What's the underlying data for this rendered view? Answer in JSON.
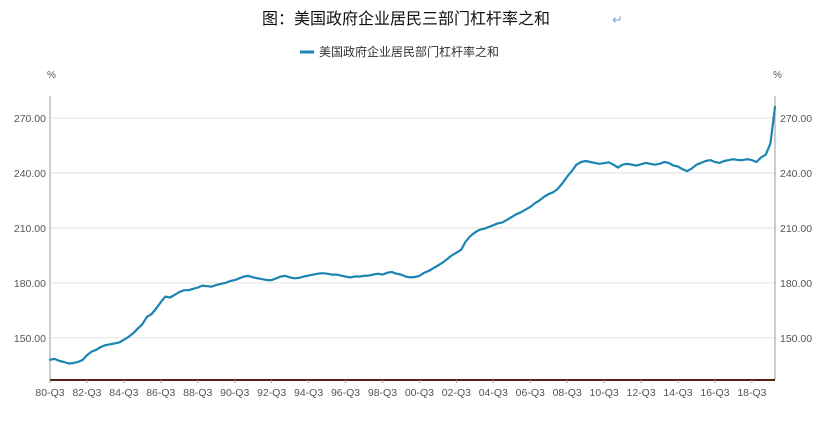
{
  "title": "图：美国政府企业居民三部门杠杆率之和",
  "return_mark": "↵",
  "chart_data": {
    "type": "line",
    "title": "图：美国政府企业居民三部门杠杆率之和",
    "y_unit_left": "%",
    "y_unit_right": "%",
    "ylim": [
      127,
      282
    ],
    "yticks": [
      "150.00",
      "180.00",
      "210.00",
      "240.00",
      "270.00"
    ],
    "x_tick_labels": [
      "80-Q3",
      "82-Q3",
      "84-Q3",
      "86-Q3",
      "88-Q3",
      "90-Q3",
      "92-Q3",
      "94-Q3",
      "96-Q3",
      "98-Q3",
      "00-Q3",
      "02-Q3",
      "04-Q3",
      "06-Q3",
      "08-Q3",
      "10-Q3",
      "12-Q3",
      "14-Q3",
      "16-Q3",
      "18-Q3"
    ],
    "x_start": "1980-Q3",
    "x_end": "2019-Q4",
    "grid": true,
    "legend_position": "top-center",
    "series": [
      {
        "name": "美国政府企业居民部门杠杆率之和",
        "color": "#1b84b3",
        "points": [
          [
            "1980-Q3",
            138.0
          ],
          [
            "1980-Q4",
            138.5
          ],
          [
            "1981-Q1",
            137.5
          ],
          [
            "1981-Q2",
            136.8
          ],
          [
            "1981-Q3",
            136.0
          ],
          [
            "1981-Q4",
            136.2
          ],
          [
            "1982-Q1",
            136.8
          ],
          [
            "1982-Q2",
            137.8
          ],
          [
            "1982-Q3",
            140.5
          ],
          [
            "1982-Q4",
            142.5
          ],
          [
            "1983-Q1",
            143.5
          ],
          [
            "1983-Q2",
            145.0
          ],
          [
            "1983-Q3",
            146.0
          ],
          [
            "1983-Q4",
            146.5
          ],
          [
            "1984-Q1",
            147.0
          ],
          [
            "1984-Q2",
            147.5
          ],
          [
            "1984-Q3",
            149.0
          ],
          [
            "1984-Q4",
            150.5
          ],
          [
            "1985-Q1",
            152.5
          ],
          [
            "1985-Q2",
            155.0
          ],
          [
            "1985-Q3",
            157.5
          ],
          [
            "1985-Q4",
            161.5
          ],
          [
            "1986-Q1",
            163.0
          ],
          [
            "1986-Q2",
            166.0
          ],
          [
            "1986-Q3",
            169.5
          ],
          [
            "1986-Q4",
            172.5
          ],
          [
            "1987-Q1",
            172.0
          ],
          [
            "1987-Q2",
            173.5
          ],
          [
            "1987-Q3",
            175.0
          ],
          [
            "1987-Q4",
            176.0
          ],
          [
            "1988-Q1",
            176.0
          ],
          [
            "1988-Q2",
            176.8
          ],
          [
            "1988-Q3",
            177.5
          ],
          [
            "1988-Q4",
            178.5
          ],
          [
            "1989-Q1",
            178.2
          ],
          [
            "1989-Q2",
            178.0
          ],
          [
            "1989-Q3",
            178.8
          ],
          [
            "1989-Q4",
            179.5
          ],
          [
            "1990-Q1",
            180.0
          ],
          [
            "1990-Q2",
            181.0
          ],
          [
            "1990-Q3",
            181.5
          ],
          [
            "1990-Q4",
            182.5
          ],
          [
            "1991-Q1",
            183.5
          ],
          [
            "1991-Q2",
            183.8
          ],
          [
            "1991-Q3",
            183.0
          ],
          [
            "1991-Q4",
            182.5
          ],
          [
            "1992-Q1",
            182.0
          ],
          [
            "1992-Q2",
            181.5
          ],
          [
            "1992-Q3",
            181.5
          ],
          [
            "1992-Q4",
            182.5
          ],
          [
            "1993-Q1",
            183.5
          ],
          [
            "1993-Q2",
            183.8
          ],
          [
            "1993-Q3",
            183.0
          ],
          [
            "1993-Q4",
            182.5
          ],
          [
            "1994-Q1",
            182.8
          ],
          [
            "1994-Q2",
            183.5
          ],
          [
            "1994-Q3",
            184.0
          ],
          [
            "1994-Q4",
            184.5
          ],
          [
            "1995-Q1",
            185.0
          ],
          [
            "1995-Q2",
            185.3
          ],
          [
            "1995-Q3",
            185.0
          ],
          [
            "1995-Q4",
            184.5
          ],
          [
            "1996-Q1",
            184.5
          ],
          [
            "1996-Q2",
            184.0
          ],
          [
            "1996-Q3",
            183.5
          ],
          [
            "1996-Q4",
            183.0
          ],
          [
            "1997-Q1",
            183.5
          ],
          [
            "1997-Q2",
            183.5
          ],
          [
            "1997-Q3",
            183.8
          ],
          [
            "1997-Q4",
            184.0
          ],
          [
            "1998-Q1",
            184.5
          ],
          [
            "1998-Q2",
            185.0
          ],
          [
            "1998-Q3",
            184.5
          ],
          [
            "1998-Q4",
            185.5
          ],
          [
            "1999-Q1",
            186.0
          ],
          [
            "1999-Q2",
            185.0
          ],
          [
            "1999-Q3",
            184.5
          ],
          [
            "1999-Q4",
            183.5
          ],
          [
            "2000-Q1",
            183.0
          ],
          [
            "2000-Q2",
            183.2
          ],
          [
            "2000-Q3",
            183.8
          ],
          [
            "2000-Q4",
            185.5
          ],
          [
            "2001-Q1",
            186.5
          ],
          [
            "2001-Q2",
            188.0
          ],
          [
            "2001-Q3",
            189.5
          ],
          [
            "2001-Q4",
            191.0
          ],
          [
            "2002-Q1",
            193.0
          ],
          [
            "2002-Q2",
            195.0
          ],
          [
            "2002-Q3",
            196.5
          ],
          [
            "2002-Q4",
            198.0
          ],
          [
            "2003-Q1",
            202.5
          ],
          [
            "2003-Q2",
            205.5
          ],
          [
            "2003-Q3",
            207.5
          ],
          [
            "2003-Q4",
            209.0
          ],
          [
            "2004-Q1",
            209.5
          ],
          [
            "2004-Q2",
            210.5
          ],
          [
            "2004-Q3",
            211.5
          ],
          [
            "2004-Q4",
            212.5
          ],
          [
            "2005-Q1",
            213.0
          ],
          [
            "2005-Q2",
            214.5
          ],
          [
            "2005-Q3",
            216.0
          ],
          [
            "2005-Q4",
            217.5
          ],
          [
            "2006-Q1",
            218.5
          ],
          [
            "2006-Q2",
            220.0
          ],
          [
            "2006-Q3",
            221.5
          ],
          [
            "2006-Q4",
            223.5
          ],
          [
            "2007-Q1",
            225.0
          ],
          [
            "2007-Q2",
            227.0
          ],
          [
            "2007-Q3",
            228.5
          ],
          [
            "2007-Q4",
            229.5
          ],
          [
            "2008-Q1",
            231.5
          ],
          [
            "2008-Q2",
            234.5
          ],
          [
            "2008-Q3",
            238.0
          ],
          [
            "2008-Q4",
            241.0
          ],
          [
            "2009-Q1",
            244.5
          ],
          [
            "2009-Q2",
            246.0
          ],
          [
            "2009-Q3",
            246.5
          ],
          [
            "2009-Q4",
            246.0
          ],
          [
            "2010-Q1",
            245.5
          ],
          [
            "2010-Q2",
            245.0
          ],
          [
            "2010-Q3",
            245.3
          ],
          [
            "2010-Q4",
            245.8
          ],
          [
            "2011-Q1",
            244.5
          ],
          [
            "2011-Q2",
            243.0
          ],
          [
            "2011-Q3",
            244.5
          ],
          [
            "2011-Q4",
            245.0
          ],
          [
            "2012-Q1",
            244.5
          ],
          [
            "2012-Q2",
            244.0
          ],
          [
            "2012-Q3",
            244.8
          ],
          [
            "2012-Q4",
            245.5
          ],
          [
            "2013-Q1",
            245.0
          ],
          [
            "2013-Q2",
            244.5
          ],
          [
            "2013-Q3",
            245.0
          ],
          [
            "2013-Q4",
            246.0
          ],
          [
            "2014-Q1",
            245.5
          ],
          [
            "2014-Q2",
            244.0
          ],
          [
            "2014-Q3",
            243.5
          ],
          [
            "2014-Q4",
            242.0
          ],
          [
            "2015-Q1",
            241.0
          ],
          [
            "2015-Q2",
            242.5
          ],
          [
            "2015-Q3",
            244.5
          ],
          [
            "2015-Q4",
            245.5
          ],
          [
            "2016-Q1",
            246.5
          ],
          [
            "2016-Q2",
            247.0
          ],
          [
            "2016-Q3",
            246.0
          ],
          [
            "2016-Q4",
            245.5
          ],
          [
            "2017-Q1",
            246.5
          ],
          [
            "2017-Q2",
            247.0
          ],
          [
            "2017-Q3",
            247.5
          ],
          [
            "2017-Q4",
            247.0
          ],
          [
            "2018-Q1",
            247.0
          ],
          [
            "2018-Q2",
            247.5
          ],
          [
            "2018-Q3",
            247.0
          ],
          [
            "2018-Q4",
            246.0
          ],
          [
            "2019-Q1",
            248.5
          ],
          [
            "2019-Q2",
            250.0
          ],
          [
            "2019-Q3",
            256.0
          ],
          [
            "2019-Q4",
            276.0
          ]
        ]
      }
    ]
  }
}
